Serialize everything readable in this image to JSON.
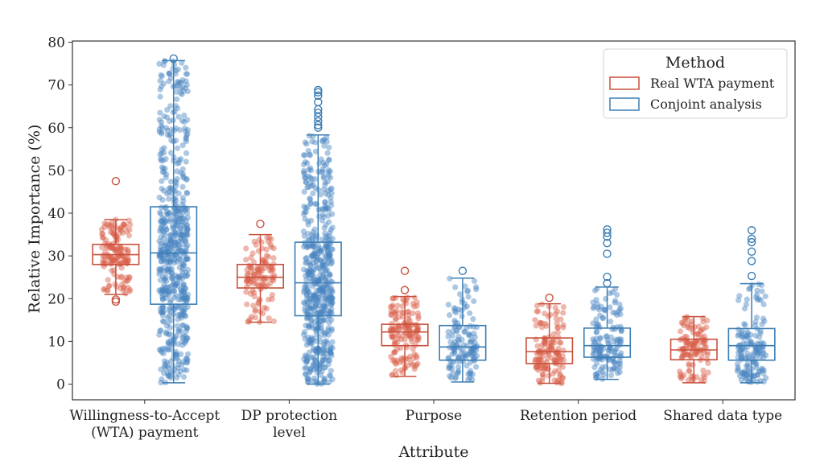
{
  "chart_data": {
    "type": "box",
    "xlabel": "Attribute",
    "ylabel": "Relative Importance (%)",
    "ylim": [
      -3,
      80
    ],
    "yticks": [
      "0",
      "10",
      "20",
      "30",
      "40",
      "50",
      "60",
      "70",
      "80"
    ],
    "categories": [
      [
        "Willingness-to-Accept",
        "(WTA) payment"
      ],
      [
        "DP protection",
        "level"
      ],
      [
        "Purpose"
      ],
      [
        "Retention period"
      ],
      [
        "Shared data type"
      ]
    ],
    "legend": {
      "title": "Method",
      "position": "top-right"
    },
    "series": [
      {
        "name": "Real WTA payment",
        "color": "#c8503c",
        "point_color": "#d9604a",
        "boxes": [
          {
            "whislo": 21.0,
            "q1": 28.0,
            "median": 30.3,
            "q3": 32.7,
            "whishi": 38.5,
            "fliers": [
              47.5,
              19.3,
              19.8
            ],
            "n_points": 150
          },
          {
            "whislo": 14.5,
            "q1": 22.5,
            "median": 25.0,
            "q3": 28.0,
            "whishi": 35.0,
            "fliers": [
              37.5
            ],
            "n_points": 120
          },
          {
            "whislo": 1.8,
            "q1": 9.0,
            "median": 12.2,
            "q3": 14.0,
            "whishi": 20.5,
            "fliers": [
              22.0,
              26.5
            ],
            "n_points": 150
          },
          {
            "whislo": 0.2,
            "q1": 4.8,
            "median": 7.6,
            "q3": 10.8,
            "whishi": 18.8,
            "fliers": [
              20.2
            ],
            "n_points": 140
          },
          {
            "whislo": 0.3,
            "q1": 5.7,
            "median": 8.0,
            "q3": 10.5,
            "whishi": 15.8,
            "fliers": [],
            "n_points": 120
          }
        ]
      },
      {
        "name": "Conjoint analysis",
        "color": "#3c7eb4",
        "point_color": "#4a86c0",
        "boxes": [
          {
            "whislo": 0.3,
            "q1": 18.7,
            "median": 30.7,
            "q3": 41.5,
            "whishi": 75.7,
            "fliers": [
              76.2
            ],
            "n_points": 600
          },
          {
            "whislo": 0.0,
            "q1": 16.0,
            "median": 23.7,
            "q3": 33.2,
            "whishi": 58.3,
            "fliers": [
              60.0,
              60.6,
              61.5,
              62.5,
              63.5,
              64.3,
              66.0,
              67.5,
              68.3,
              68.8
            ],
            "n_points": 550
          },
          {
            "whislo": 0.5,
            "q1": 5.6,
            "median": 8.7,
            "q3": 13.7,
            "whishi": 24.8,
            "fliers": [
              26.5
            ],
            "n_points": 140
          },
          {
            "whislo": 1.1,
            "q1": 6.3,
            "median": 9.0,
            "q3": 13.1,
            "whishi": 22.7,
            "fliers": [
              23.6,
              25.1,
              30.5,
              33.0,
              34.5,
              35.4,
              36.2
            ],
            "n_points": 150
          },
          {
            "whislo": 0.3,
            "q1": 5.6,
            "median": 9.0,
            "q3": 13.0,
            "whishi": 23.5,
            "fliers": [
              25.3,
              28.8,
              31.0,
              33.2,
              34.0,
              36.0
            ],
            "n_points": 150
          }
        ]
      }
    ]
  }
}
